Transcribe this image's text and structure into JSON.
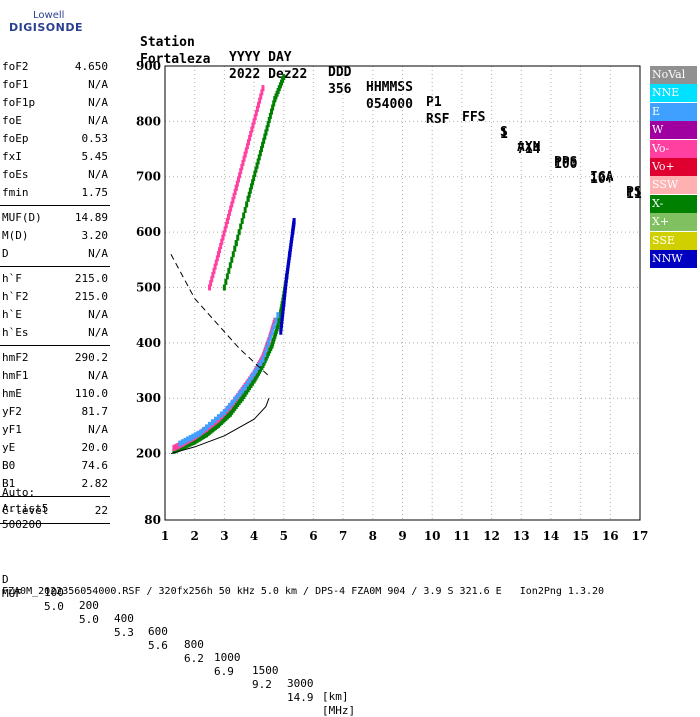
{
  "logo": {
    "line1": "Lowell",
    "line2": "DIGISONDE"
  },
  "header": {
    "labels": [
      "Station",
      "YYYY DAY",
      "DDD",
      "HHMMSS",
      "P1",
      "FFS",
      "S",
      "AXN",
      "PPS",
      "IGA",
      "PS"
    ],
    "values": [
      "Fortaleza",
      "2022 Dez22",
      "356",
      "054000",
      "RSF",
      "1",
      "714",
      "100",
      "10+",
      "11"
    ]
  },
  "params_group1": [
    {
      "k": "foF2",
      "v": "4.650"
    },
    {
      "k": "foF1",
      "v": "N/A"
    },
    {
      "k": "foF1p",
      "v": "N/A"
    },
    {
      "k": "foE",
      "v": "N/A"
    },
    {
      "k": "foEp",
      "v": "0.53"
    },
    {
      "k": "fxI",
      "v": "5.45"
    },
    {
      "k": "foEs",
      "v": "N/A"
    },
    {
      "k": "fmin",
      "v": "1.75"
    }
  ],
  "params_group2": [
    {
      "k": "MUF(D)",
      "v": "14.89"
    },
    {
      "k": "M(D)",
      "v": "3.20"
    },
    {
      "k": "D",
      "v": "N/A"
    }
  ],
  "params_group3": [
    {
      "k": "h`F",
      "v": "215.0"
    },
    {
      "k": "h`F2",
      "v": "215.0"
    },
    {
      "k": "h`E",
      "v": "N/A"
    },
    {
      "k": "h`Es",
      "v": "N/A"
    }
  ],
  "params_group4": [
    {
      "k": "hmF2",
      "v": "290.2"
    },
    {
      "k": "hmF1",
      "v": "N/A"
    },
    {
      "k": "hmE",
      "v": "110.0"
    },
    {
      "k": "yF2",
      "v": "81.7"
    },
    {
      "k": "yF1",
      "v": "N/A"
    },
    {
      "k": "yE",
      "v": "20.0"
    },
    {
      "k": "B0",
      "v": "74.6"
    },
    {
      "k": "B1",
      "v": "2.82"
    }
  ],
  "clevel": {
    "k": "C-level",
    "v": "22"
  },
  "auto": {
    "line1": "Auto:",
    "line2": "Artist5",
    "line3": "500200"
  },
  "legend": [
    {
      "label": "NoVal",
      "color": "#909090"
    },
    {
      "label": "NNE",
      "color": "#00e0ff"
    },
    {
      "label": "E",
      "color": "#40a0ff"
    },
    {
      "label": "W",
      "color": "#a000a0"
    },
    {
      "label": "Vo-",
      "color": "#ff40a0"
    },
    {
      "label": "Vo+",
      "color": "#e00030"
    },
    {
      "label": "SSW",
      "color": "#ffb0b0"
    },
    {
      "label": "X-",
      "color": "#008000"
    },
    {
      "label": "X+",
      "color": "#80c060"
    },
    {
      "label": "SSE",
      "color": "#d0d000"
    },
    {
      "label": "NNW",
      "color": "#0000c0"
    }
  ],
  "footer": {
    "d_label": "D",
    "d_values": [
      "100",
      "200",
      "400",
      "600",
      "800",
      "1000",
      "1500",
      "3000",
      "[km]"
    ],
    "muf_label": "MUF",
    "muf_values": [
      "5.0",
      "5.0",
      "5.3",
      "5.6",
      "6.2",
      "6.9",
      "9.2",
      "14.9",
      "[MHz]"
    ],
    "bottom": "FZA0M_2022356054000.RSF / 320fx256h 50 kHz 5.0 km / DPS-4 FZA0M 904 / 3.9 S 321.6 E   Ion2Png 1.3.20"
  },
  "chart_data": {
    "type": "scatter",
    "title": "",
    "xlabel": "",
    "ylabel": "",
    "xlim": [
      1,
      17
    ],
    "ylim": [
      80,
      900
    ],
    "xticks": [
      1,
      2,
      3,
      4,
      5,
      6,
      7,
      8,
      9,
      10,
      11,
      12,
      13,
      14,
      15,
      16,
      17
    ],
    "yticks": [
      80,
      200,
      300,
      400,
      500,
      600,
      700,
      800,
      900
    ],
    "grid": "dotted",
    "legend_position": "right",
    "profile_curve": [
      [
        1.2,
        200
      ],
      [
        2,
        212
      ],
      [
        3,
        232
      ],
      [
        4,
        262
      ],
      [
        4.4,
        285
      ],
      [
        4.5,
        300
      ]
    ],
    "dashed_curve": [
      [
        1.2,
        560
      ],
      [
        1.6,
        520
      ],
      [
        2,
        480
      ],
      [
        2.5,
        450
      ],
      [
        3,
        420
      ],
      [
        3.5,
        390
      ],
      [
        4,
        365
      ],
      [
        4.5,
        340
      ]
    ],
    "traces": [
      {
        "series": "X-",
        "color": "#008000",
        "points": [
          [
            1.3,
            205
          ],
          [
            1.6,
            212
          ],
          [
            2,
            222
          ],
          [
            2.4,
            235
          ],
          [
            2.8,
            252
          ],
          [
            3.2,
            272
          ],
          [
            3.6,
            300
          ],
          [
            4,
            332
          ],
          [
            4.3,
            360
          ],
          [
            4.6,
            395
          ],
          [
            4.8,
            430
          ],
          [
            4.95,
            470
          ],
          [
            5.1,
            520
          ]
        ]
      },
      {
        "series": "Vo-",
        "color": "#ff40a0",
        "points": [
          [
            1.3,
            210
          ],
          [
            1.6,
            218
          ],
          [
            2,
            230
          ],
          [
            2.4,
            245
          ],
          [
            2.8,
            262
          ],
          [
            3.2,
            285
          ],
          [
            3.6,
            315
          ],
          [
            4,
            345
          ],
          [
            4.3,
            375
          ],
          [
            4.5,
            405
          ],
          [
            4.7,
            440
          ]
        ]
      },
      {
        "series": "E",
        "color": "#40a0ff",
        "points": [
          [
            1.5,
            218
          ],
          [
            2.2,
            238
          ],
          [
            3,
            275
          ],
          [
            3.7,
            320
          ],
          [
            4.3,
            370
          ],
          [
            4.8,
            450
          ]
        ]
      },
      {
        "series": "NNW",
        "color": "#0000c0",
        "points": [
          [
            4.9,
            420
          ],
          [
            5,
            470
          ],
          [
            5.1,
            520
          ],
          [
            5.2,
            560
          ],
          [
            5.3,
            600
          ],
          [
            5.35,
            620
          ]
        ]
      },
      {
        "series": "Vo-",
        "color": "#ff40a0",
        "points": [
          [
            2.5,
            500
          ],
          [
            2.8,
            560
          ],
          [
            3.1,
            620
          ],
          [
            3.4,
            680
          ],
          [
            3.7,
            740
          ],
          [
            4,
            800
          ],
          [
            4.3,
            860
          ]
        ]
      },
      {
        "series": "X-",
        "color": "#008000",
        "points": [
          [
            3,
            500
          ],
          [
            3.4,
            580
          ],
          [
            3.8,
            660
          ],
          [
            4.1,
            720
          ],
          [
            4.4,
            780
          ],
          [
            4.7,
            840
          ],
          [
            5,
            880
          ]
        ]
      }
    ]
  }
}
